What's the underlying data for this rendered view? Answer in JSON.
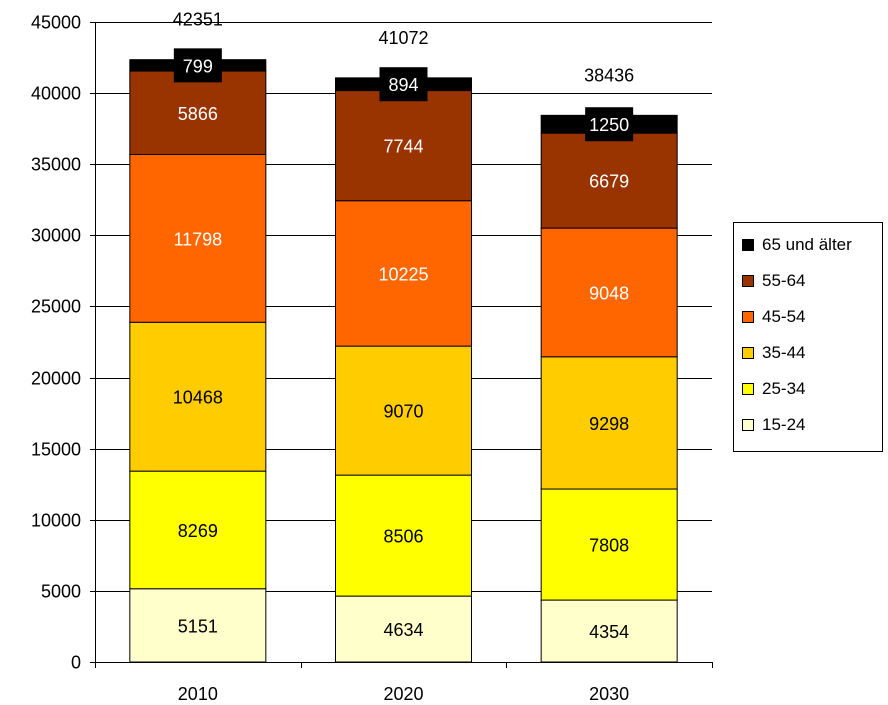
{
  "chart_data": {
    "type": "bar",
    "stacked": true,
    "categories": [
      "2010",
      "2020",
      "2030"
    ],
    "ylim": [
      0,
      45000
    ],
    "yticks": [
      0,
      5000,
      10000,
      15000,
      20000,
      25000,
      30000,
      35000,
      40000,
      45000
    ],
    "grid": true,
    "legend_position": "right",
    "series": [
      {
        "name": "15-24",
        "color": "#FFFFCC",
        "label_color": "#000000",
        "values": [
          5151,
          4634,
          4354
        ]
      },
      {
        "name": "25-34",
        "color": "#FFFF00",
        "label_color": "#000000",
        "values": [
          8269,
          8506,
          7808
        ]
      },
      {
        "name": "35-44",
        "color": "#FFCC00",
        "label_color": "#000000",
        "values": [
          10468,
          9070,
          9298
        ]
      },
      {
        "name": "45-54",
        "color": "#FF6600",
        "label_color": "#FFFFFF",
        "values": [
          11798,
          10225,
          9048
        ]
      },
      {
        "name": "55-64",
        "color": "#993300",
        "label_color": "#FFFFFF",
        "values": [
          5866,
          7744,
          6679
        ]
      },
      {
        "name": "65 und älter",
        "color": "#000000",
        "label_color": "#FFFFFF",
        "values": [
          799,
          894,
          1250
        ]
      }
    ],
    "totals": [
      42351,
      41072,
      38436
    ]
  }
}
